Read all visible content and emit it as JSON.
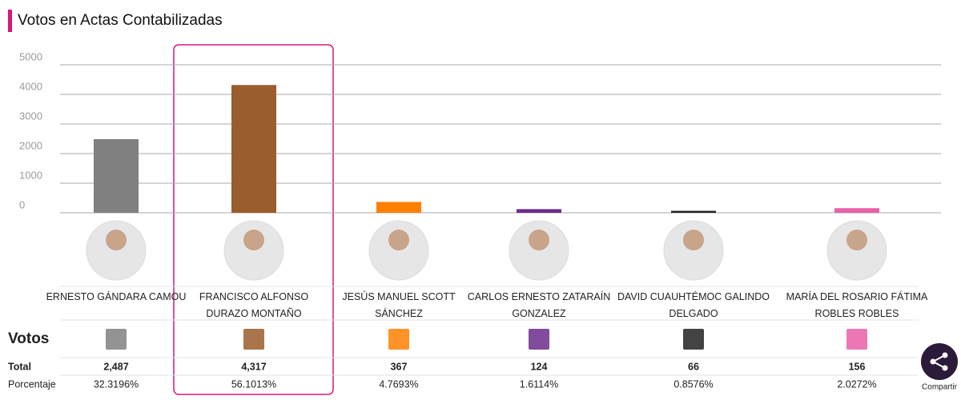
{
  "chart_data": {
    "type": "bar",
    "title": "Votos en Actas Contabilizadas",
    "categories": [
      "ERNESTO GÁNDARA CAMOU",
      "FRANCISCO ALFONSO DURAZO MONTAÑO",
      "JESÚS MANUEL SCOTT SÁNCHEZ",
      "CARLOS ERNESTO ZATARAÍN GONZALEZ",
      "DAVID CUAUHTÉMOC GALINDO DELGADO",
      "MARÍA DEL ROSARIO FÁTIMA ROBLES ROBLES"
    ],
    "values": [
      2487,
      4317,
      367,
      124,
      66,
      156
    ],
    "value_labels": [
      "2,487",
      "4,317",
      "367",
      "124",
      "66",
      "156"
    ],
    "colors": [
      "#808080",
      "#9a5d2e",
      "#ff7f00",
      "#6b2d8a",
      "#222222",
      "#e860a8"
    ],
    "ylim": [
      0,
      5000
    ],
    "yticks": [
      0,
      1000,
      2000,
      3000,
      4000,
      5000
    ],
    "grid": true
  },
  "table": {
    "votes_heading": "Votos",
    "total_label": "Total",
    "percent_label": "Porcentaje",
    "percentages": [
      "32.3196%",
      "56.1013%",
      "4.7693%",
      "1.6114%",
      "0.8576%",
      "2.0272%"
    ]
  },
  "share_label": "Compartir"
}
